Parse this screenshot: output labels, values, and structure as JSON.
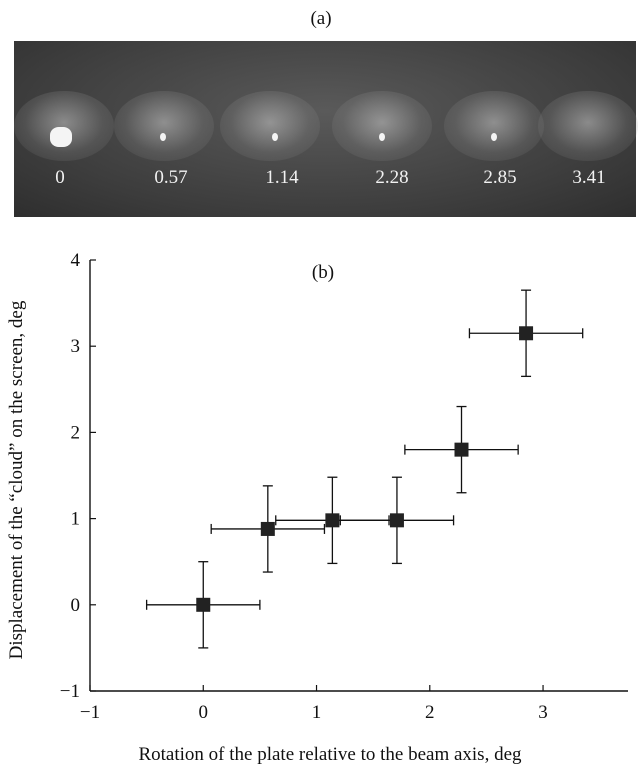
{
  "panel_a": {
    "label": "(a)",
    "photos": [
      {
        "caption": "0"
      },
      {
        "caption": "0.57"
      },
      {
        "caption": "1.14"
      },
      {
        "caption": "2.28"
      },
      {
        "caption": "2.85"
      },
      {
        "caption": "3.41"
      }
    ]
  },
  "colors": {
    "marker": "#222222",
    "axis": "#111111",
    "photo_background": "#3c3c3c"
  },
  "chart_data": {
    "type": "scatter",
    "panel_label": "(b)",
    "title": "",
    "xlabel": "Rotation of the plate relative to the beam axis, deg",
    "ylabel": "Displacement of the “cloud” on the screen, deg",
    "xlim": [
      -1,
      3.75
    ],
    "ylim": [
      -1,
      4
    ],
    "xticks": [
      -1,
      0,
      1,
      2,
      3
    ],
    "yticks": [
      -1,
      0,
      1,
      2,
      3,
      4
    ],
    "xtick_labels": [
      "−1",
      "0",
      "1",
      "2",
      "3"
    ],
    "ytick_labels": [
      "−1",
      "0",
      "1",
      "2",
      "3",
      "4"
    ],
    "grid": false,
    "series": [
      {
        "points": [
          {
            "x": 0.0,
            "y": 0.0,
            "xerr": 0.5,
            "yerr": 0.5
          },
          {
            "x": 0.57,
            "y": 0.88,
            "xerr": 0.5,
            "yerr": 0.5
          },
          {
            "x": 1.14,
            "y": 0.98,
            "xerr": 0.5,
            "yerr": 0.5
          },
          {
            "x": 1.71,
            "y": 0.98,
            "xerr": 0.5,
            "yerr": 0.5
          },
          {
            "x": 2.28,
            "y": 1.8,
            "xerr": 0.5,
            "yerr": 0.5
          },
          {
            "x": 2.85,
            "y": 3.15,
            "xerr": 0.5,
            "yerr": 0.5
          }
        ]
      }
    ]
  }
}
